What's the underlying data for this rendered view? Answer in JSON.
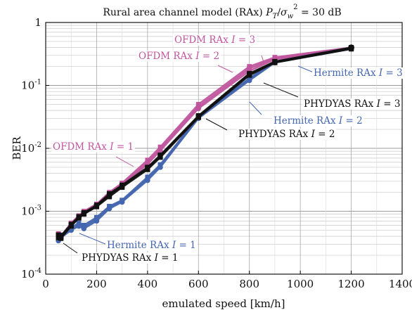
{
  "chart_data": {
    "type": "line",
    "title": "Rural area channel model (RAx) P_T/σ_w² = 30 dB",
    "xlabel": "emulated speed [km/h]",
    "ylabel": "BER",
    "xlim": [
      0,
      1400
    ],
    "ylim": [
      0.0001,
      1
    ],
    "y_scale": "log",
    "grid": true,
    "x_ticks": [
      "0",
      "200",
      "400",
      "600",
      "800",
      "1000",
      "1200",
      "1400"
    ],
    "y_ticks": [
      "10^-4",
      "10^-3",
      "10^-2",
      "10^-1",
      "1"
    ],
    "series": [
      {
        "name": "OFDM RAx I = 3",
        "color": "#c0559e",
        "x": [
          50,
          60,
          100,
          130,
          150,
          200,
          250,
          300,
          400,
          450,
          600,
          800,
          900,
          1200
        ],
        "y": [
          0.00044,
          0.0004,
          0.00065,
          0.00085,
          0.001,
          0.0013,
          0.002,
          0.0028,
          0.0065,
          0.0105,
          0.05,
          0.2,
          0.28,
          0.4
        ]
      },
      {
        "name": "OFDM RAx I = 2",
        "color": "#c0559e",
        "x": [
          50,
          60,
          100,
          130,
          150,
          200,
          250,
          300,
          400,
          450,
          600,
          800,
          900,
          1200
        ],
        "y": [
          0.00043,
          0.00039,
          0.00063,
          0.00082,
          0.00095,
          0.00125,
          0.0019,
          0.0027,
          0.006,
          0.0098,
          0.046,
          0.185,
          0.27,
          0.39
        ]
      },
      {
        "name": "OFDM RAx I = 1",
        "color": "#c0559e",
        "x": [
          50,
          60,
          100,
          130,
          150,
          200,
          250,
          300,
          400,
          450,
          600,
          800,
          900,
          1200
        ],
        "y": [
          0.00042,
          0.00038,
          0.0006,
          0.0008,
          0.0009,
          0.0012,
          0.0018,
          0.0026,
          0.0056,
          0.0092,
          0.043,
          0.17,
          0.26,
          0.38
        ]
      },
      {
        "name": "Hermite RAx I = 3",
        "color": "#4466b0",
        "x": [
          50,
          60,
          100,
          130,
          150,
          200,
          250,
          300,
          400,
          450,
          600,
          800,
          900,
          1200
        ],
        "y": [
          0.00038,
          0.00042,
          0.00055,
          0.00065,
          0.0006,
          0.0008,
          0.0012,
          0.0015,
          0.0035,
          0.0055,
          0.032,
          0.13,
          0.24,
          0.4
        ]
      },
      {
        "name": "Hermite RAx I = 2",
        "color": "#4466b0",
        "x": [
          50,
          60,
          100,
          130,
          150,
          200,
          250,
          300,
          400,
          450,
          600,
          800,
          900,
          1200
        ],
        "y": [
          0.00036,
          0.0004,
          0.00052,
          0.0006,
          0.00056,
          0.00075,
          0.00115,
          0.00145,
          0.0033,
          0.0052,
          0.031,
          0.125,
          0.235,
          0.39
        ]
      },
      {
        "name": "Hermite RAx I = 1",
        "color": "#4466b0",
        "x": [
          50,
          60,
          100,
          130,
          150,
          200,
          250,
          300,
          400,
          450,
          600,
          800,
          900,
          1200
        ],
        "y": [
          0.00034,
          0.00038,
          0.0005,
          0.00058,
          0.00053,
          0.0007,
          0.0011,
          0.0014,
          0.0031,
          0.005,
          0.03,
          0.12,
          0.23,
          0.38
        ]
      },
      {
        "name": "PHYDYAS RAx I = 3",
        "color": "#111111",
        "x": [
          50,
          60,
          100,
          130,
          150,
          200,
          250,
          300,
          400,
          450,
          600,
          800,
          900,
          1200
        ],
        "y": [
          0.00042,
          0.00041,
          0.00062,
          0.00082,
          0.00095,
          0.00125,
          0.0019,
          0.0026,
          0.005,
          0.0078,
          0.033,
          0.155,
          0.24,
          0.4
        ]
      },
      {
        "name": "PHYDYAS RAx I = 2",
        "color": "#111111",
        "x": [
          50,
          60,
          100,
          130,
          150,
          200,
          250,
          300,
          400,
          450,
          600,
          800,
          900,
          1200
        ],
        "y": [
          0.0004,
          0.00039,
          0.0006,
          0.0008,
          0.00092,
          0.0012,
          0.0018,
          0.0025,
          0.0048,
          0.0075,
          0.032,
          0.15,
          0.235,
          0.39
        ]
      },
      {
        "name": "PHYDYAS RAx I = 1",
        "color": "#111111",
        "x": [
          50,
          60,
          100,
          130,
          150,
          200,
          250,
          300,
          400,
          450,
          600,
          800,
          900,
          1200
        ],
        "y": [
          0.00038,
          0.00037,
          0.00058,
          0.00078,
          0.0009,
          0.00118,
          0.0017,
          0.0024,
          0.0046,
          0.0072,
          0.031,
          0.145,
          0.23,
          0.38
        ]
      }
    ],
    "annotations": [
      {
        "text": "OFDM RAx I = 3",
        "color": "#c0559e"
      },
      {
        "text": "OFDM RAx I = 2",
        "color": "#c0559e"
      },
      {
        "text": "OFDM RAx I = 1",
        "color": "#c0559e"
      },
      {
        "text": "Hermite RAx I = 3",
        "color": "#4466b0"
      },
      {
        "text": "Hermite RAx I = 2",
        "color": "#4466b0"
      },
      {
        "text": "Hermite RAx I = 1",
        "color": "#4466b0"
      },
      {
        "text": "PHYDYAS RAx I = 3",
        "color": "#111111"
      },
      {
        "text": "PHYDYAS RAx I = 2",
        "color": "#111111"
      },
      {
        "text": "PHYDYAS RAx I = 1",
        "color": "#111111"
      }
    ]
  }
}
